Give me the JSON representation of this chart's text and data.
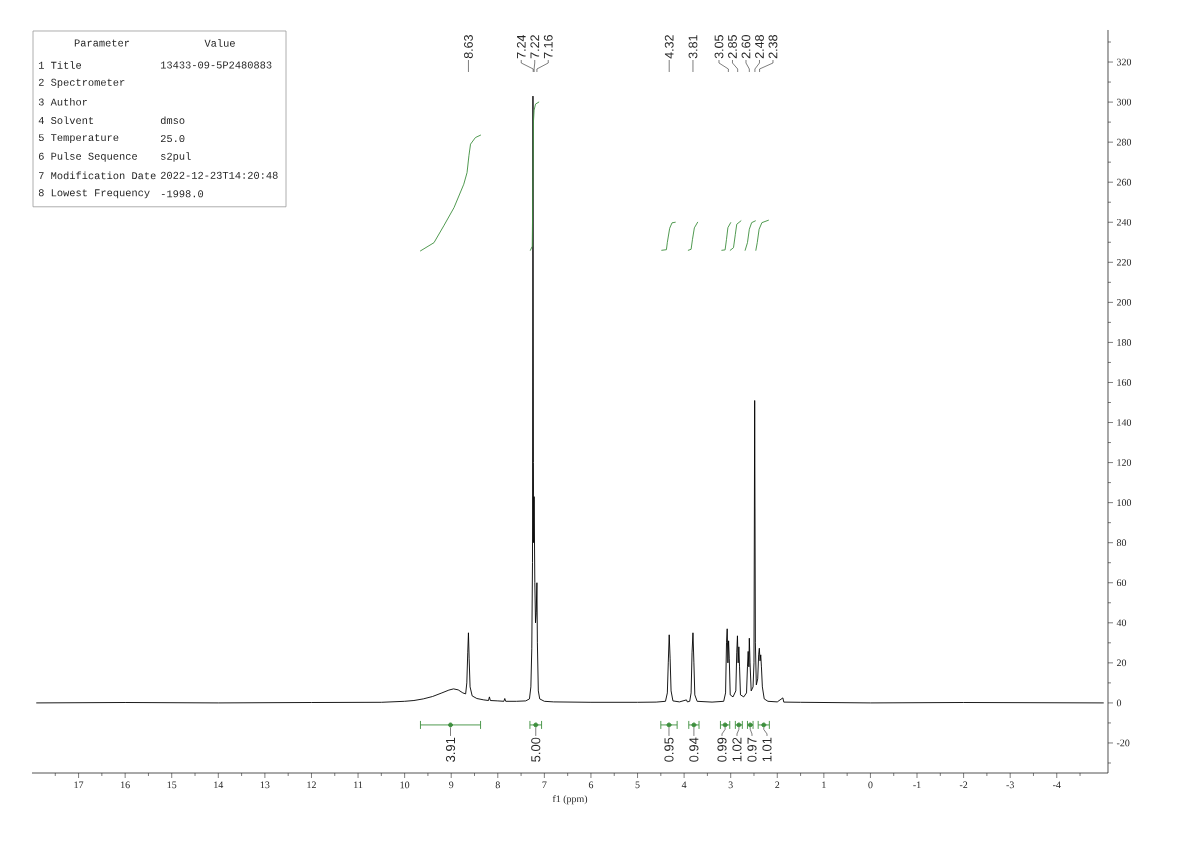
{
  "chart_data": {
    "type": "line",
    "xlabel": "f1 (ppm)",
    "xlim": [
      18.0,
      -5.1
    ],
    "ylim": [
      -35,
      336
    ],
    "xticks": [
      {
        "value": -4.5,
        "label": null
      },
      -4,
      {
        "value": -3.5,
        "label": null
      },
      -3,
      {
        "value": -2.5,
        "label": null
      },
      -2,
      {
        "value": -1.5,
        "label": null
      },
      -1,
      {
        "value": -0.5,
        "label": null
      },
      0,
      {
        "value": 0.5,
        "label": null
      },
      1,
      {
        "value": 1.5,
        "label": null
      },
      2,
      {
        "value": 2.5,
        "label": null
      },
      3,
      {
        "value": 3.5,
        "label": null
      },
      4,
      {
        "value": 4.5,
        "label": null
      },
      5,
      {
        "value": 5.5,
        "label": null
      },
      6,
      {
        "value": 6.5,
        "label": null
      },
      7,
      {
        "value": 7.5,
        "label": null
      },
      8,
      {
        "value": 8.5,
        "label": null
      },
      9,
      {
        "value": 9.5,
        "label": null
      },
      10,
      {
        "value": 10.5,
        "label": null
      },
      11,
      {
        "value": 11.5,
        "label": null
      },
      12,
      {
        "value": 12.5,
        "label": null
      },
      13,
      {
        "value": 13.5,
        "label": null
      },
      14,
      {
        "value": 14.5,
        "label": null
      },
      15,
      {
        "value": 15.5,
        "label": null
      },
      16,
      {
        "value": 16.5,
        "label": null
      },
      17,
      {
        "value": 17.5,
        "label": null
      }
    ],
    "yticks": [
      {
        "value": -30,
        "label": null
      },
      -20,
      {
        "value": -10,
        "label": null
      },
      0,
      {
        "value": 10,
        "label": null
      },
      20,
      {
        "value": 30,
        "label": null
      },
      40,
      {
        "value": 50,
        "label": null
      },
      60,
      {
        "value": 70,
        "label": null
      },
      80,
      {
        "value": 90,
        "label": null
      },
      100,
      {
        "value": 110,
        "label": null
      },
      120,
      {
        "value": 130,
        "label": null
      },
      140,
      {
        "value": 150,
        "label": null
      },
      160,
      {
        "value": 170,
        "label": null
      },
      180,
      {
        "value": 190,
        "label": null
      },
      200,
      {
        "value": 210,
        "label": null
      },
      220,
      {
        "value": 230,
        "label": null
      },
      240,
      {
        "value": 250,
        "label": null
      },
      260,
      {
        "value": 270,
        "label": null
      },
      280,
      {
        "value": 290,
        "label": null
      },
      300,
      {
        "value": 310,
        "label": null
      },
      320,
      {
        "value": 330,
        "label": null
      }
    ],
    "series": [
      {
        "color": "#000000",
        "x": [
          17.9,
          16.0,
          14.0,
          12.0,
          10.5,
          10.0,
          9.8,
          9.6,
          9.4,
          9.2,
          9.05,
          8.95,
          8.85,
          8.75,
          8.69,
          8.665,
          8.645,
          8.63,
          8.615,
          8.595,
          8.55,
          8.45,
          8.3,
          8.2,
          8.18,
          8.16,
          8.0,
          7.87,
          7.85,
          7.83,
          7.6,
          7.4,
          7.32,
          7.29,
          7.27,
          7.255,
          7.245,
          7.235,
          7.23,
          7.22,
          7.205,
          7.19,
          7.175,
          7.16,
          7.15,
          7.13,
          7.1,
          7.0,
          6.8,
          6.0,
          5.0,
          4.6,
          4.4,
          4.36,
          4.34,
          4.32,
          4.3,
          4.28,
          4.24,
          4.1,
          3.95,
          3.93,
          3.88,
          3.85,
          3.83,
          3.81,
          3.79,
          3.77,
          3.72,
          3.4,
          3.15,
          3.11,
          3.09,
          3.075,
          3.06,
          3.045,
          3.03,
          3.01,
          2.95,
          2.89,
          2.87,
          2.855,
          2.84,
          2.825,
          2.81,
          2.79,
          2.72,
          2.66,
          2.64,
          2.625,
          2.61,
          2.6,
          2.585,
          2.56,
          2.52,
          2.5,
          2.485,
          2.47,
          2.45,
          2.42,
          2.4,
          2.385,
          2.37,
          2.355,
          2.34,
          2.32,
          2.28,
          2.2,
          2.0,
          1.88,
          1.86,
          1.5,
          0,
          -2.0,
          -5.0
        ],
        "values": [
          0,
          0.2,
          0,
          0.2,
          0.3,
          0.8,
          1.2,
          2.0,
          3.2,
          5.0,
          6.4,
          7.0,
          6.5,
          5.0,
          4.5,
          10,
          25,
          35,
          22,
          8,
          3.5,
          2.2,
          1.5,
          1.2,
          3,
          1.2,
          1.0,
          0.8,
          2.2,
          0.8,
          0.8,
          1.0,
          2,
          8,
          27,
          70,
          303,
          120,
          80,
          103,
          60,
          40,
          45,
          60,
          30,
          6,
          2,
          0.8,
          0.5,
          0.3,
          0.3,
          0.4,
          0.8,
          5,
          20,
          34,
          22,
          6,
          1,
          0.5,
          1.5,
          0.5,
          0.8,
          5,
          25,
          35,
          20,
          4,
          0.8,
          0.4,
          0.8,
          5,
          30,
          37,
          20,
          31,
          22,
          4,
          3,
          6,
          25,
          33.5,
          20,
          28,
          18,
          4,
          3,
          5,
          18,
          25.7,
          18,
          32.3,
          20,
          6,
          8,
          20,
          151,
          30,
          9,
          12,
          24,
          27.3,
          21,
          24,
          18,
          8,
          2,
          0.8,
          0.5,
          2.5,
          0.4,
          0.3,
          0,
          0.2,
          0
        ]
      },
      {
        "color": "#3d8f3d",
        "x": [
          9.66,
          9.37,
          9.16,
          8.94,
          8.73,
          8.66,
          8.62,
          8.585,
          8.48,
          8.37
        ],
        "values": [
          225.7,
          229.8,
          238.2,
          247.3,
          259,
          264.8,
          273.2,
          279,
          282.3,
          283.5
        ]
      },
      {
        "color": "#3d8f3d",
        "x": [
          7.3,
          7.26,
          7.245,
          7.235,
          7.22,
          7.19,
          7.12
        ],
        "values": [
          226,
          228,
          262,
          290,
          296,
          299,
          300
        ]
      },
      {
        "color": "#3d8f3d",
        "x": [
          4.48,
          4.38,
          4.36,
          4.31,
          4.26,
          4.19
        ],
        "values": [
          226,
          226.3,
          230,
          237,
          239.7,
          240
        ]
      },
      {
        "color": "#3d8f3d",
        "x": [
          3.91,
          3.85,
          3.82,
          3.78,
          3.71
        ],
        "values": [
          226,
          226.5,
          231.5,
          237.2,
          240
        ]
      },
      {
        "color": "#3d8f3d",
        "x": [
          3.19,
          3.12,
          3.09,
          3.06,
          3.0
        ],
        "values": [
          226,
          226.2,
          231.5,
          237.3,
          239.8
        ]
      },
      {
        "color": "#3d8f3d",
        "x": [
          3.01,
          2.94,
          2.9,
          2.87,
          2.78
        ],
        "values": [
          226,
          227.3,
          234,
          239,
          240.7
        ]
      },
      {
        "color": "#3d8f3d",
        "x": [
          2.69,
          2.64,
          2.6,
          2.55,
          2.47
        ],
        "values": [
          226,
          229.8,
          236.5,
          239.8,
          240.7
        ]
      },
      {
        "color": "#3d8f3d",
        "x": [
          2.46,
          2.43,
          2.39,
          2.33,
          2.19
        ],
        "values": [
          226,
          229.8,
          236.5,
          239.8,
          241
        ]
      },
      {
        "type": "scatter",
        "color": "#3d8f3d",
        "x": [
          9.015,
          7.185,
          4.325,
          3.79,
          3.12,
          2.825,
          2.58,
          2.29
        ],
        "values": [
          -11,
          -11,
          -11,
          -11,
          -11,
          -11,
          -11,
          -11
        ],
        "xerrors": [
          0.645,
          0.125,
          0.175,
          0.11,
          0.1,
          0.075,
          0.06,
          0.12
        ]
      }
    ],
    "annotations": [
      "Parameter",
      "Value",
      "1 Title",
      "13433-09-5P2480883",
      "2 Spectrometer",
      null,
      "3 Author",
      null,
      "4 Solvent",
      "dmso",
      "5 Temperature",
      "25.0",
      "6 Pulse Sequence",
      "s2pul",
      "7 Modification Date",
      "2022-12-23T14:20:48",
      "8 Lowest Frequency",
      "-1998.0",
      {
        "text": "8.63",
        "x": 8.63
      },
      {
        "text": "7.24",
        "x": 7.24
      },
      {
        "text": "7.22",
        "x": 7.22
      },
      {
        "text": "7.16",
        "x": 7.16
      },
      {
        "text": "4.32",
        "x": 4.32
      },
      {
        "text": "3.81",
        "x": 3.81
      },
      {
        "text": "3.05",
        "x": 3.05
      },
      {
        "text": "2.85",
        "x": 2.85
      },
      {
        "text": "2.60",
        "x": 2.6
      },
      {
        "text": "2.48",
        "x": 2.48
      },
      {
        "text": "2.38",
        "x": 2.38
      },
      {
        "text": "3.91",
        "x": 9.015,
        "y": -11
      },
      {
        "text": "5.00",
        "x": 7.185,
        "y": -11
      },
      {
        "text": "0.95",
        "x": 4.325,
        "y": -11
      },
      {
        "text": "0.94",
        "x": 3.79,
        "y": -11
      },
      {
        "text": "0.99",
        "x": 3.12,
        "y": -11
      },
      {
        "text": "1.02",
        "x": 2.825,
        "y": -11
      },
      {
        "text": "0.97",
        "x": 2.58,
        "y": -11
      },
      {
        "text": "1.01",
        "x": 2.29,
        "y": -11
      }
    ]
  }
}
